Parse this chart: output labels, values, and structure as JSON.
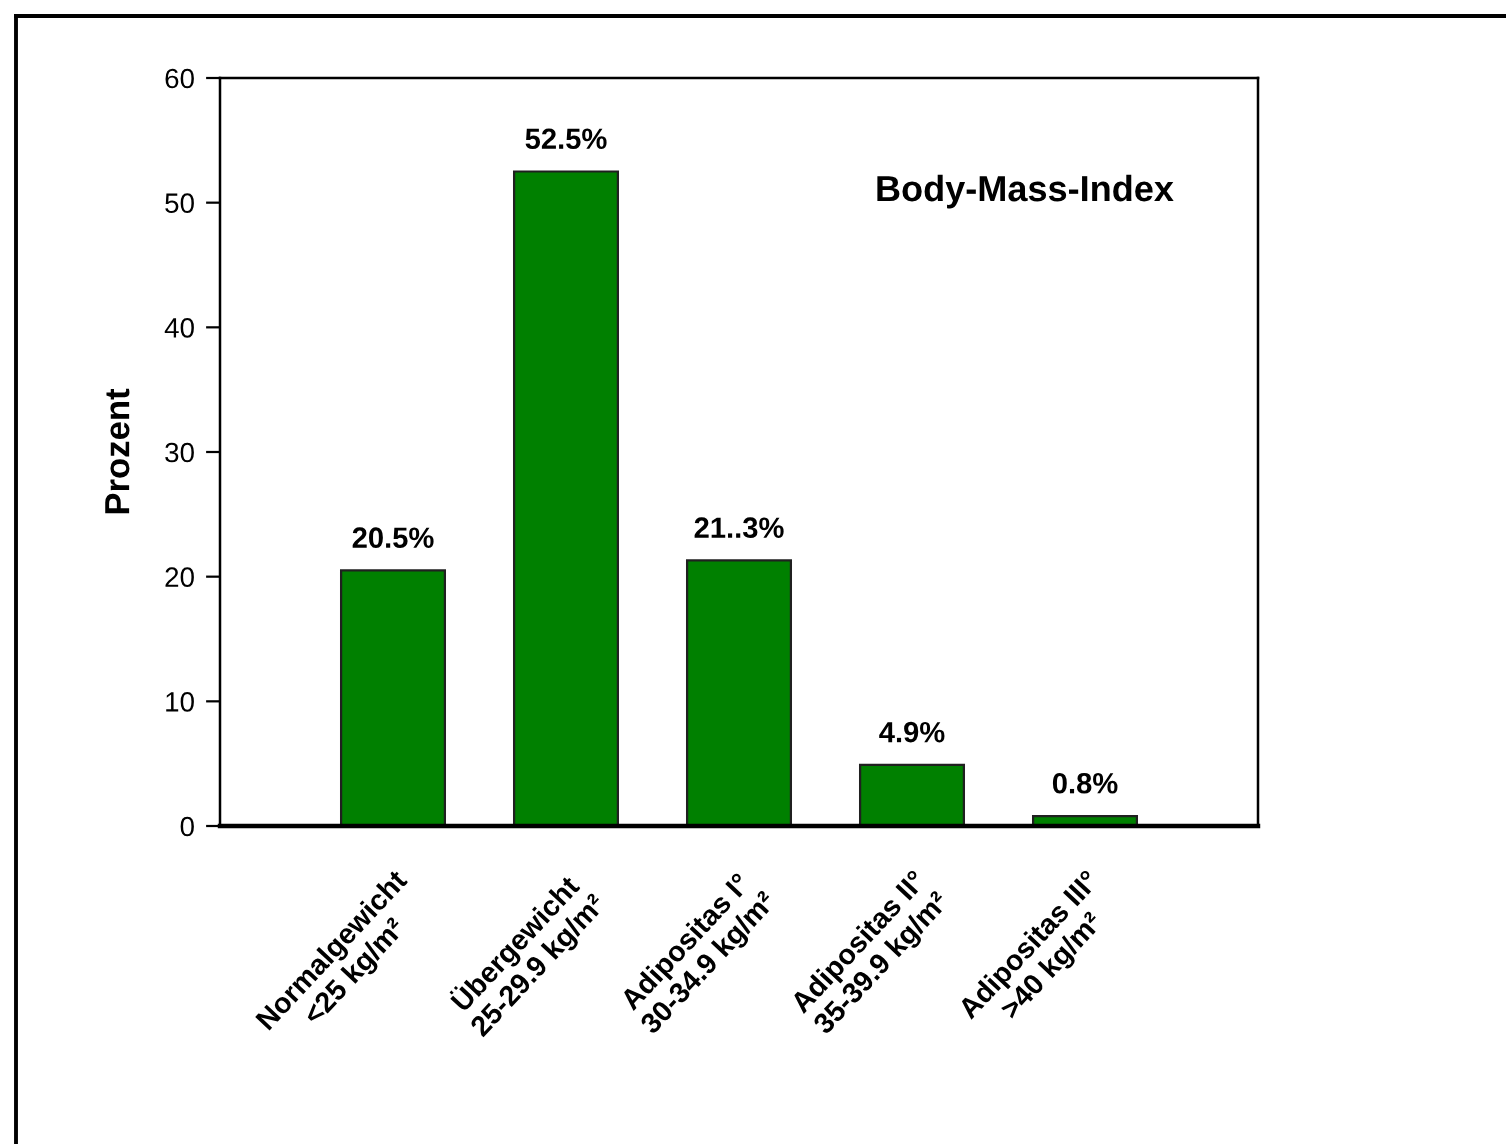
{
  "chart_data": {
    "type": "bar",
    "title": "Body-Mass-Index",
    "ylabel": "Prozent",
    "categories": [
      "Normalgewicht\n<25 kg/m²",
      "Übergewicht\n25-29.9 kg/m²",
      "Adipositas I°\n30-34.9 kg/m²",
      "Adipositas II°\n35-39.9 kg/m²",
      "Adipositas III°\n>40 kg/m²"
    ],
    "values": [
      20.5,
      52.5,
      21.3,
      4.9,
      0.8
    ],
    "value_labels": [
      "20.5%",
      "52.5%",
      "21..3%",
      "4.9%",
      "0.8%"
    ],
    "color": "#008000",
    "ylim": [
      0,
      60
    ],
    "yticks": [
      0,
      10,
      20,
      30,
      40,
      50,
      60
    ]
  }
}
